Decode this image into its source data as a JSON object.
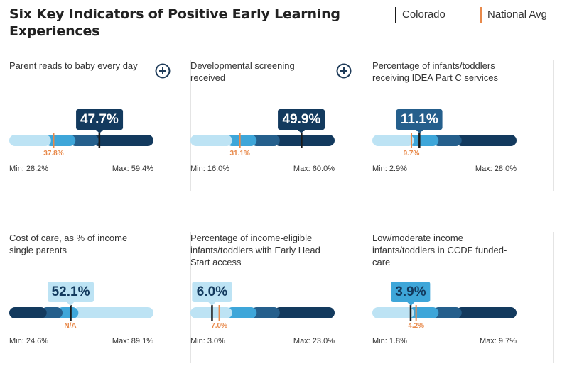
{
  "title": "Six Key Indicators of Positive Early Learning Experiences",
  "legend": {
    "state_label": "Colorado",
    "national_label": "National Avg",
    "state_color": "#1a1a1a",
    "national_color": "#e8894a"
  },
  "colors": {
    "band_lightest": "#bde3f4",
    "band_light": "#3ea6d9",
    "band_mid": "#255f8c",
    "band_dark": "#133a5e",
    "state_marker": "#1a1a1a",
    "national_marker": "#e8894a",
    "icon": "#1f3c5a"
  },
  "chart_data": [
    {
      "type": "bar",
      "title": "Parent reads to baby every day",
      "has_expand_icon": true,
      "state_value": 47.7,
      "state_label": "47.7%",
      "national_value": 37.8,
      "national_label": "37.8%",
      "min": 28.2,
      "max": 59.4,
      "min_label": "Min: 28.2%",
      "max_label": "Max: 59.4%",
      "higher_is_better": true,
      "badge_band": "band_dark"
    },
    {
      "type": "bar",
      "title": "Developmental screening received",
      "has_expand_icon": true,
      "state_value": 49.9,
      "state_label": "49.9%",
      "national_value": 31.1,
      "national_label": "31.1%",
      "min": 16.0,
      "max": 60.0,
      "min_label": "Min: 16.0%",
      "max_label": "Max: 60.0%",
      "higher_is_better": true,
      "badge_band": "band_dark"
    },
    {
      "type": "bar",
      "title": "Percentage of infants/toddlers receiving IDEA Part C services",
      "has_expand_icon": false,
      "state_value": 11.1,
      "state_label": "11.1%",
      "national_value": 9.7,
      "national_label": "9.7%",
      "min": 2.9,
      "max": 28.0,
      "min_label": "Min: 2.9%",
      "max_label": "Max: 28.0%",
      "higher_is_better": true,
      "badge_band": "band_mid"
    },
    {
      "type": "bar",
      "title": "Cost of care, as % of income single parents",
      "has_expand_icon": false,
      "state_value": 52.1,
      "state_label": "52.1%",
      "national_value": null,
      "national_label": "N/A",
      "min": 24.6,
      "max": 89.1,
      "min_label": "Min: 24.6%",
      "max_label": "Max: 89.1%",
      "higher_is_better": false,
      "badge_band": "band_lightest"
    },
    {
      "type": "bar",
      "title": "Percentage of income-eligible infants/toddlers with Early Head Start access",
      "has_expand_icon": false,
      "state_value": 6.0,
      "state_label": "6.0%",
      "national_value": 7.0,
      "national_label": "7.0%",
      "min": 3.0,
      "max": 23.0,
      "min_label": "Min: 3.0%",
      "max_label": "Max: 23.0%",
      "higher_is_better": true,
      "badge_band": "band_lightest"
    },
    {
      "type": "bar",
      "title": "Low/moderate income infants/toddlers in CCDF funded-care",
      "has_expand_icon": false,
      "state_value": 3.9,
      "state_label": "3.9%",
      "national_value": 4.2,
      "national_label": "4.2%",
      "min": 1.8,
      "max": 9.7,
      "min_label": "Min: 1.8%",
      "max_label": "Max: 9.7%",
      "higher_is_better": true,
      "badge_band": "band_light"
    }
  ]
}
